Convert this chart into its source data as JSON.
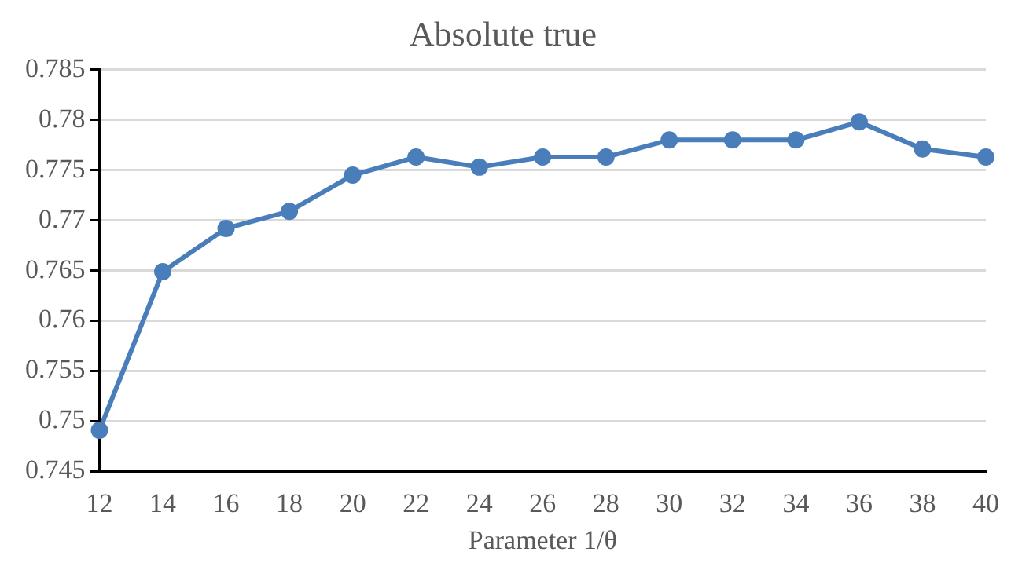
{
  "chart_data": {
    "type": "line",
    "title": "Absolute true",
    "xlabel": "Parameter 1/θ",
    "categories": [
      "12",
      "14",
      "16",
      "18",
      "20",
      "22",
      "24",
      "26",
      "28",
      "30",
      "32",
      "34",
      "36",
      "38",
      "40"
    ],
    "series": [
      {
        "color": "#4a7ebb",
        "values": [
          0.7491,
          0.7649,
          0.7692,
          0.7709,
          0.7745,
          0.7763,
          0.7753,
          0.7763,
          0.7763,
          0.778,
          0.778,
          0.778,
          0.7798,
          0.7771,
          0.7763
        ]
      }
    ],
    "ylim": [
      0.745,
      0.785
    ],
    "yticks": [
      0.745,
      0.75,
      0.755,
      0.76,
      0.765,
      0.77,
      0.775,
      0.78,
      0.785
    ],
    "grid": "y",
    "legend": false,
    "marker": "circle",
    "line_style": "solid"
  }
}
